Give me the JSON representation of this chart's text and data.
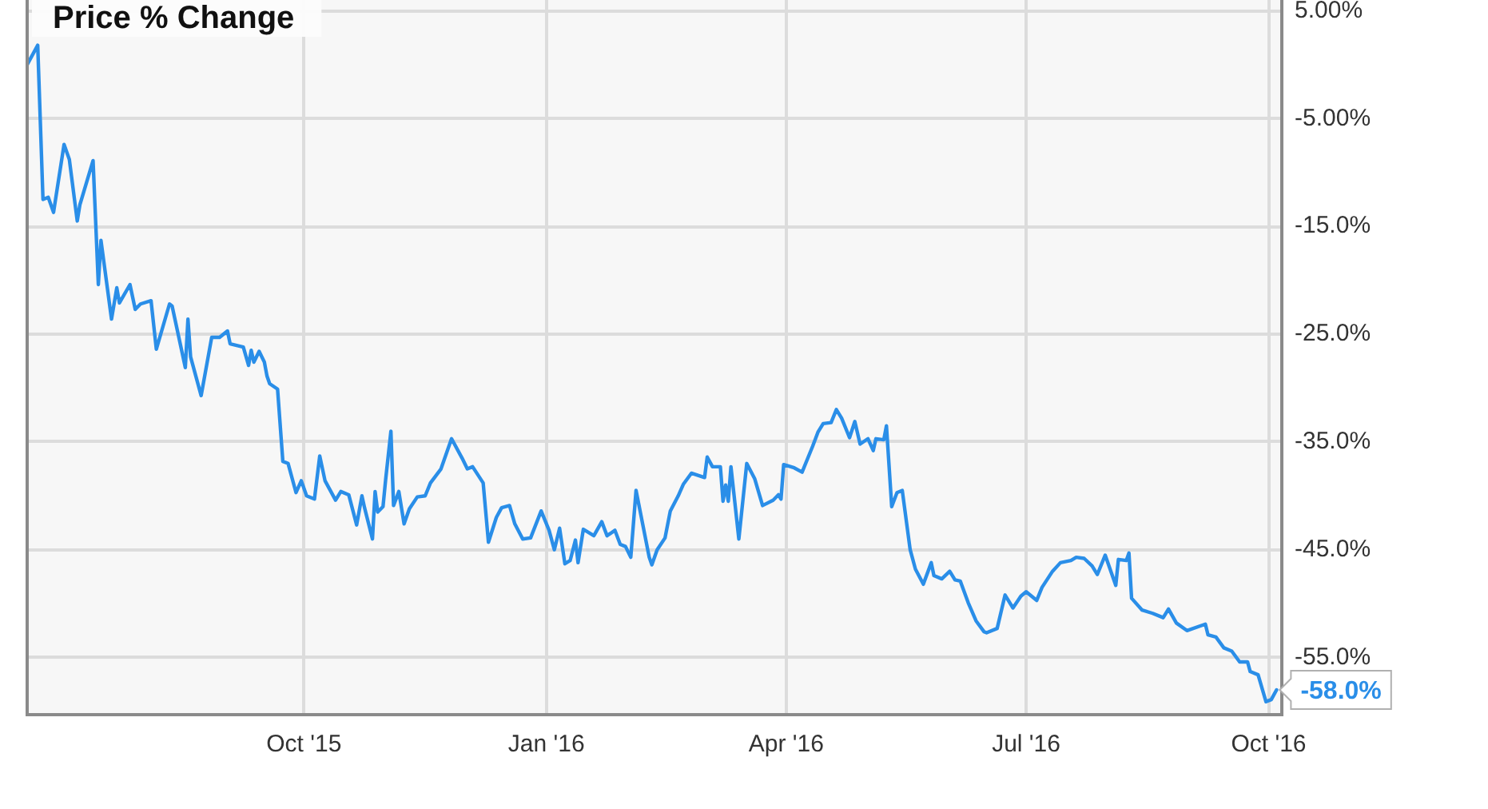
{
  "chart_data": {
    "type": "line",
    "title": "Price % Change",
    "x": [
      "2015-06-18",
      "2015-06-22",
      "2015-06-24",
      "2015-06-26",
      "2015-06-28",
      "2015-07-02",
      "2015-07-04",
      "2015-07-07",
      "2015-07-08",
      "2015-07-13",
      "2015-07-15",
      "2015-07-16",
      "2015-07-20",
      "2015-07-22",
      "2015-07-23",
      "2015-07-27",
      "2015-07-29",
      "2015-07-31",
      "2015-08-04",
      "2015-08-06",
      "2015-08-11",
      "2015-08-12",
      "2015-08-17",
      "2015-08-18",
      "2015-08-19",
      "2015-08-23",
      "2015-08-27",
      "2015-08-30",
      "2015-09-02",
      "2015-09-03",
      "2015-09-08",
      "2015-09-10",
      "2015-09-11",
      "2015-09-12",
      "2015-09-14",
      "2015-09-16",
      "2015-09-17",
      "2015-09-18",
      "2015-09-21",
      "2015-09-23",
      "2015-09-25",
      "2015-09-28",
      "2015-09-30",
      "2015-10-02",
      "2015-10-05",
      "2015-10-07",
      "2015-10-09",
      "2015-10-13",
      "2015-10-15",
      "2015-10-18",
      "2015-10-21",
      "2015-10-23",
      "2015-10-24",
      "2015-10-27",
      "2015-10-28",
      "2015-10-29",
      "2015-10-31",
      "2015-11-01",
      "2015-11-03",
      "2015-11-04",
      "2015-11-06",
      "2015-11-08",
      "2015-11-10",
      "2015-11-13",
      "2015-11-16",
      "2015-11-18",
      "2015-11-22",
      "2015-11-26",
      "2015-11-30",
      "2015-12-02",
      "2015-12-04",
      "2015-12-08",
      "2015-12-10",
      "2015-12-13",
      "2015-12-15",
      "2015-12-18",
      "2015-12-20",
      "2015-12-23",
      "2015-12-26",
      "2015-12-30",
      "2016-01-02",
      "2016-01-04",
      "2016-01-06",
      "2016-01-08",
      "2016-01-10",
      "2016-01-12",
      "2016-01-13",
      "2016-01-15",
      "2016-01-19",
      "2016-01-22",
      "2016-01-24",
      "2016-01-27",
      "2016-01-29",
      "2016-01-31",
      "2016-02-02",
      "2016-02-04",
      "2016-02-09",
      "2016-02-10",
      "2016-02-12",
      "2016-02-15",
      "2016-02-17",
      "2016-02-20",
      "2016-02-22",
      "2016-02-25",
      "2016-03-01",
      "2016-03-02",
      "2016-03-04",
      "2016-03-07",
      "2016-03-08",
      "2016-03-09",
      "2016-03-10",
      "2016-03-11",
      "2016-03-14",
      "2016-03-17",
      "2016-03-20",
      "2016-03-23",
      "2016-03-27",
      "2016-03-29",
      "2016-03-30",
      "2016-03-31",
      "2016-04-04",
      "2016-04-07",
      "2016-04-11",
      "2016-04-13",
      "2016-04-15",
      "2016-04-18",
      "2016-04-20",
      "2016-04-22",
      "2016-04-25",
      "2016-04-27",
      "2016-04-29",
      "2016-05-02",
      "2016-05-04",
      "2016-05-05",
      "2016-05-08",
      "2016-05-09",
      "2016-05-11",
      "2016-05-13",
      "2016-05-15",
      "2016-05-18",
      "2016-05-20",
      "2016-05-23",
      "2016-05-26",
      "2016-05-27",
      "2016-05-30",
      "2016-06-02",
      "2016-06-04",
      "2016-06-06",
      "2016-06-09",
      "2016-06-12",
      "2016-06-15",
      "2016-06-16",
      "2016-06-20",
      "2016-06-23",
      "2016-06-26",
      "2016-06-29",
      "2016-07-01",
      "2016-07-05",
      "2016-07-07",
      "2016-07-11",
      "2016-07-14",
      "2016-07-18",
      "2016-07-20",
      "2016-07-23",
      "2016-07-26",
      "2016-07-28",
      "2016-07-31",
      "2016-08-04",
      "2016-08-05",
      "2016-08-08",
      "2016-08-09",
      "2016-08-10",
      "2016-08-14",
      "2016-08-18",
      "2016-08-22",
      "2016-08-24",
      "2016-08-27",
      "2016-08-31",
      "2016-09-07",
      "2016-09-08",
      "2016-09-11",
      "2016-09-14",
      "2016-09-17",
      "2016-09-20",
      "2016-09-23",
      "2016-09-24",
      "2016-09-27",
      "2016-09-30",
      "2016-10-02",
      "2016-10-04"
    ],
    "series": [
      {
        "color": "#2a8ee8",
        "values": [
          0.0,
          1.8,
          -12.5,
          -12.3,
          -13.7,
          -7.4,
          -8.8,
          -14.5,
          -13.0,
          -8.9,
          -20.4,
          -16.3,
          -23.6,
          -20.7,
          -22.1,
          -20.4,
          -22.7,
          -22.2,
          -21.9,
          -26.4,
          -22.2,
          -22.4,
          -28.1,
          -23.6,
          -27.1,
          -30.7,
          -25.3,
          -25.3,
          -24.7,
          -25.9,
          -26.2,
          -27.9,
          -26.5,
          -27.6,
          -26.6,
          -27.6,
          -28.9,
          -29.6,
          -30.1,
          -36.8,
          -37.0,
          -39.7,
          -38.6,
          -40.0,
          -40.3,
          -36.3,
          -38.6,
          -40.4,
          -39.6,
          -39.9,
          -42.7,
          -40.0,
          -41.1,
          -44.0,
          -39.6,
          -41.5,
          -41.0,
          -38.5,
          -34.0,
          -40.9,
          -39.6,
          -42.6,
          -41.2,
          -40.1,
          -40.0,
          -38.8,
          -37.5,
          -34.7,
          -36.5,
          -37.5,
          -37.3,
          -38.8,
          -44.3,
          -42.0,
          -41.1,
          -40.9,
          -42.6,
          -44.0,
          -43.9,
          -41.4,
          -43.2,
          -45.0,
          -43.0,
          -46.3,
          -46.0,
          -44.1,
          -46.2,
          -43.1,
          -43.7,
          -42.4,
          -43.7,
          -43.2,
          -44.5,
          -44.7,
          -45.7,
          -39.5,
          -45.7,
          -46.4,
          -45.0,
          -43.9,
          -41.4,
          -40.0,
          -38.9,
          -37.9,
          -38.3,
          -36.4,
          -37.3,
          -37.3,
          -40.5,
          -39.0,
          -40.5,
          -37.3,
          -44.0,
          -37.0,
          -38.4,
          -40.9,
          -40.4,
          -39.9,
          -40.3,
          -37.1,
          -37.4,
          -37.8,
          -35.4,
          -34.1,
          -33.3,
          -33.2,
          -32.0,
          -32.8,
          -34.6,
          -33.1,
          -35.2,
          -34.7,
          -35.8,
          -34.7,
          -34.8,
          -33.5,
          -41.0,
          -39.7,
          -39.5,
          -45.0,
          -46.8,
          -48.2,
          -46.2,
          -47.4,
          -47.7,
          -47.0,
          -47.8,
          -47.9,
          -49.9,
          -51.6,
          -52.6,
          -52.7,
          -52.3,
          -49.2,
          -50.4,
          -49.3,
          -48.9,
          -49.7,
          -48.5,
          -47.0,
          -46.2,
          -46.0,
          -45.7,
          -45.8,
          -46.5,
          -47.3,
          -45.5,
          -48.3,
          -45.9,
          -46.0,
          -45.3,
          -49.5,
          -50.6,
          -50.9,
          -51.3,
          -50.5,
          -51.8,
          -52.5,
          -51.9,
          -52.9,
          -53.1,
          -54.1,
          -54.4,
          -55.4,
          -55.4,
          -56.3,
          -56.6,
          -59.1,
          -58.9,
          -58.0
        ]
      }
    ],
    "xlim": [
      "2015-06-18",
      "2016-10-06"
    ],
    "xticks": [
      {
        "value": "2015-10-01",
        "label": "Oct '15"
      },
      {
        "value": "2016-01-01",
        "label": "Jan '16"
      },
      {
        "value": "2016-04-01",
        "label": "Apr '16"
      },
      {
        "value": "2016-07-01",
        "label": "Jul '16"
      },
      {
        "value": "2016-10-01",
        "label": "Oct '16"
      }
    ],
    "ylim": [
      -60.3,
      6.0
    ],
    "yticks": [
      {
        "value": 5,
        "label": "5.00%"
      },
      {
        "value": -5,
        "label": "-5.00%"
      },
      {
        "value": -15,
        "label": "-15.0%"
      },
      {
        "value": -25,
        "label": "-25.0%"
      },
      {
        "value": -35,
        "label": "-35.0%"
      },
      {
        "value": -45,
        "label": "-45.0%"
      },
      {
        "value": -55,
        "label": "-55.0%"
      }
    ],
    "grid": true,
    "annotations": [
      {
        "text": "-58.0%",
        "x": "2016-10-04",
        "y": -58.0
      }
    ]
  }
}
